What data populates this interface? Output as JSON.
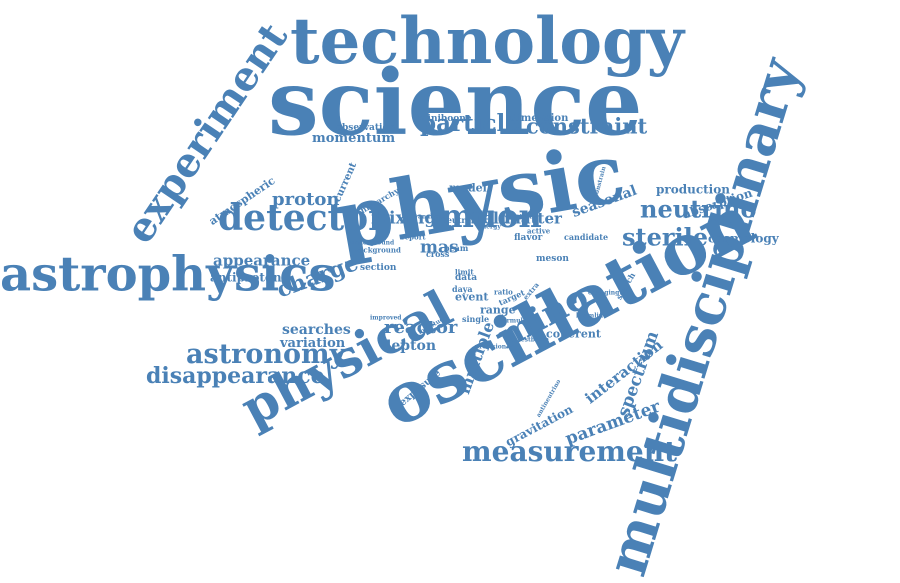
{
  "colors": {
    "word": "#4a81b6",
    "background": "#ffffff"
  },
  "words": [
    {
      "id": "technology",
      "text": "technology"
    },
    {
      "id": "science",
      "text": "science"
    },
    {
      "id": "physic",
      "text": "physic"
    },
    {
      "id": "multidisciplinary",
      "text": "multidisciplinary"
    },
    {
      "id": "oscillation",
      "text": "oscillation"
    },
    {
      "id": "astrophysics",
      "text": "astrophysics"
    },
    {
      "id": "physical",
      "text": "physical"
    },
    {
      "id": "experiment",
      "text": "experiment"
    },
    {
      "id": "detector",
      "text": "detector"
    },
    {
      "id": "measurement",
      "text": "measurement"
    },
    {
      "id": "astronomy",
      "text": "astronomy"
    },
    {
      "id": "disappearance",
      "text": "disappearance"
    },
    {
      "id": "particle",
      "text": "particle"
    },
    {
      "id": "constraint",
      "text": "constraint"
    },
    {
      "id": "neutrino",
      "text": "neutrino"
    },
    {
      "id": "sterile",
      "text": "sterile"
    },
    {
      "id": "muon",
      "text": "muon"
    },
    {
      "id": "mino",
      "text": "mino"
    },
    {
      "id": "charge",
      "text": "charge"
    },
    {
      "id": "interaction",
      "text": "interaction"
    },
    {
      "id": "parameter",
      "text": "parameter"
    },
    {
      "id": "spectrum",
      "text": "spectrum"
    },
    {
      "id": "multiple",
      "text": "multiple"
    },
    {
      "id": "reactor",
      "text": "reactor"
    },
    {
      "id": "lepton",
      "text": "lepton"
    },
    {
      "id": "momentum",
      "text": "momentum"
    },
    {
      "id": "mixing",
      "text": "mixing"
    },
    {
      "id": "field",
      "text": "field"
    },
    {
      "id": "proton",
      "text": "proton"
    },
    {
      "id": "appearance",
      "text": "appearance"
    },
    {
      "id": "antiproton",
      "text": "antiproton"
    },
    {
      "id": "searches",
      "text": "searches"
    },
    {
      "id": "variation",
      "text": "variation"
    },
    {
      "id": "production",
      "text": "production"
    },
    {
      "id": "absorption",
      "text": "absorption"
    },
    {
      "id": "cosmology",
      "text": "cosmology"
    },
    {
      "id": "seasonal",
      "text": "seasonal"
    },
    {
      "id": "matter",
      "text": "matter"
    },
    {
      "id": "gravitation",
      "text": "gravitation"
    },
    {
      "id": "exposure",
      "text": "exposure"
    },
    {
      "id": "coherent",
      "text": "coherent"
    },
    {
      "id": "atmospheric",
      "text": "atmospheric"
    },
    {
      "id": "observation",
      "text": "observation"
    },
    {
      "id": "miniboone",
      "text": "miniboone"
    },
    {
      "id": "dimension",
      "text": "dimension"
    },
    {
      "id": "current",
      "text": "current"
    },
    {
      "id": "model",
      "text": "model"
    },
    {
      "id": "mas",
      "text": "mas"
    },
    {
      "id": "event",
      "text": "event"
    },
    {
      "id": "range",
      "text": "range"
    },
    {
      "id": "data",
      "text": "data"
    },
    {
      "id": "daya",
      "text": "daya"
    },
    {
      "id": "target",
      "text": "target"
    },
    {
      "id": "section",
      "text": "section"
    },
    {
      "id": "cross",
      "text": "cross"
    },
    {
      "id": "beam",
      "text": "beam"
    },
    {
      "id": "neutral",
      "text": "neutral"
    },
    {
      "id": "energy",
      "text": "energy"
    },
    {
      "id": "flavor",
      "text": "flavor"
    },
    {
      "id": "active",
      "text": "active"
    },
    {
      "id": "candidate",
      "text": "candidate"
    },
    {
      "id": "meson",
      "text": "meson"
    },
    {
      "id": "hierarchy",
      "text": "hierarchy"
    },
    {
      "id": "report",
      "text": "report"
    },
    {
      "id": "background",
      "text": "background"
    },
    {
      "id": "underground",
      "text": "underground"
    },
    {
      "id": "single",
      "text": "single"
    },
    {
      "id": "limit",
      "text": "limit"
    },
    {
      "id": "ratio",
      "text": "ratio"
    },
    {
      "id": "improved",
      "text": "improved"
    },
    {
      "id": "testbeam",
      "text": "testbeam"
    },
    {
      "id": "precision",
      "text": "precision"
    },
    {
      "id": "changing",
      "text": "changing"
    },
    {
      "id": "search",
      "text": "search"
    },
    {
      "id": "constrain",
      "text": "constrain"
    },
    {
      "id": "antineutrino",
      "text": "antineutrino"
    },
    {
      "id": "beamline",
      "text": "beamline"
    },
    {
      "id": "electron",
      "text": "electron"
    },
    {
      "id": "analysis",
      "text": "analysis"
    },
    {
      "id": "extra",
      "text": "extra"
    },
    {
      "id": "longitude",
      "text": "longitude"
    },
    {
      "id": "formula",
      "text": "formula"
    }
  ]
}
